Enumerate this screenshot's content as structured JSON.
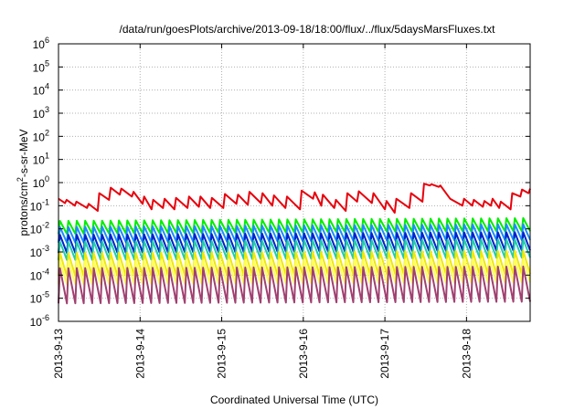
{
  "chart_data": {
    "type": "line",
    "title": "/data/run/goesPlots/archive/2013-09-18/18:00/flux/../flux/5daysMarsFluxes.txt",
    "xlabel": "Coordinated Universal Time (UTC)",
    "ylabel_main": "protons/cm",
    "ylabel_sup": "2",
    "ylabel_rest": "-s-sr-MeV",
    "y_scale": "log",
    "ylim": [
      1e-06,
      1000000.0
    ],
    "y_ticks": [
      {
        "base": "10",
        "exp": "-6"
      },
      {
        "base": "10",
        "exp": "-5"
      },
      {
        "base": "10",
        "exp": "-4"
      },
      {
        "base": "10",
        "exp": "-3"
      },
      {
        "base": "10",
        "exp": "-2"
      },
      {
        "base": "10",
        "exp": "-1"
      },
      {
        "base": "10",
        "exp": "0"
      },
      {
        "base": "10",
        "exp": "1"
      },
      {
        "base": "10",
        "exp": "2"
      },
      {
        "base": "10",
        "exp": "3"
      },
      {
        "base": "10",
        "exp": "4"
      },
      {
        "base": "10",
        "exp": "5"
      },
      {
        "base": "10",
        "exp": "6"
      }
    ],
    "x_range_days": [
      "2013-09-13",
      "2013-09-18T19:00"
    ],
    "x_ticks": [
      "2013-9-13",
      "2013-9-14",
      "2013-9-15",
      "2013-9-16",
      "2013-9-17",
      "2013-9-18"
    ],
    "grid": true,
    "legend": "none",
    "series": [
      {
        "color": "#e8000b",
        "x": [
          0,
          0.08,
          0.1,
          0.2,
          0.22,
          0.35,
          0.37,
          0.48,
          0.5,
          0.62,
          0.64,
          0.75,
          0.77,
          0.9,
          0.92,
          1.03,
          1.05,
          1.14,
          1.16,
          1.28,
          1.3,
          1.42,
          1.44,
          1.58,
          1.6,
          1.72,
          1.74,
          1.86,
          1.88,
          2.02,
          2.04,
          2.18,
          2.2,
          2.32,
          2.34,
          2.48,
          2.5,
          2.62,
          2.64,
          2.78,
          2.8,
          2.96,
          2.98,
          3.12,
          3.14,
          3.22,
          3.24,
          3.38,
          3.4,
          3.52,
          3.54,
          3.66,
          3.68,
          3.84,
          3.86,
          4.0,
          4.02,
          4.12,
          4.14,
          4.3,
          4.32,
          4.46,
          4.48,
          4.55,
          4.57,
          4.66,
          4.68,
          4.78,
          4.8,
          4.95,
          4.97,
          5.07,
          5.09,
          5.2,
          5.22,
          5.3,
          5.32,
          5.4,
          5.42,
          5.54,
          5.56,
          5.66,
          5.68,
          5.76,
          5.78
        ],
        "values": [
          0.2,
          0.13,
          0.18,
          0.1,
          0.15,
          0.08,
          0.12,
          0.06,
          0.35,
          0.18,
          0.6,
          0.3,
          0.55,
          0.25,
          0.4,
          0.12,
          0.25,
          0.07,
          0.18,
          0.08,
          0.2,
          0.07,
          0.22,
          0.08,
          0.25,
          0.09,
          0.25,
          0.08,
          0.22,
          0.08,
          0.32,
          0.12,
          0.3,
          0.11,
          0.4,
          0.13,
          0.35,
          0.1,
          0.28,
          0.08,
          0.25,
          0.07,
          0.45,
          0.2,
          0.38,
          0.1,
          0.3,
          0.08,
          0.18,
          0.06,
          0.35,
          0.15,
          0.42,
          0.13,
          0.35,
          0.07,
          0.16,
          0.05,
          0.2,
          0.08,
          0.35,
          0.15,
          0.9,
          0.75,
          0.85,
          0.65,
          0.75,
          0.25,
          0.2,
          0.1,
          0.2,
          0.1,
          0.18,
          0.09,
          0.16,
          0.1,
          0.2,
          0.08,
          0.15,
          0.07,
          0.35,
          0.25,
          0.5,
          0.35,
          0.55
        ]
      },
      {
        "color": "#00ee00",
        "base": 0.006,
        "peak": 0.022,
        "trend": 0.55
      },
      {
        "color": "#1a8cff",
        "base": 0.0025,
        "peak": 0.012,
        "trend": 0.55
      },
      {
        "color": "#0022cc",
        "base": 0.0009,
        "peak": 0.0055,
        "trend": 0.5
      },
      {
        "color": "#22ccaa",
        "base": 0.00045,
        "peak": 0.0028,
        "trend": 0.45
      },
      {
        "color": "#f0e800",
        "base": 9e-05,
        "peak": 0.0009,
        "trend": 0.4
      },
      {
        "color": "#ffff55",
        "base": 4e-05,
        "peak": 0.0004,
        "trend": 0.35
      },
      {
        "color": "#a04070",
        "base": 6e-06,
        "peak": 0.0002,
        "trend": 0.3
      }
    ]
  }
}
